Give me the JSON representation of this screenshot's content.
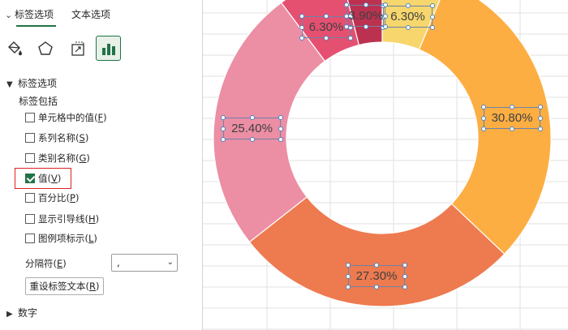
{
  "pane": {
    "tabs": [
      {
        "label": "标签选项",
        "chevron": "⌄"
      },
      {
        "label": "文本选项"
      }
    ],
    "icons": [
      "fill-line-icon",
      "effects-icon",
      "size-properties-icon",
      "chart-options-icon"
    ],
    "section_label_options": "标签选项",
    "label_contains": "标签包括",
    "options": [
      {
        "label": "单元格中的值",
        "hotkey": "F",
        "checked": false
      },
      {
        "label": "系列名称",
        "hotkey": "S",
        "checked": false
      },
      {
        "label": "类别名称",
        "hotkey": "G",
        "checked": false
      },
      {
        "label": "值",
        "hotkey": "V",
        "checked": true
      },
      {
        "label": "百分比",
        "hotkey": "P",
        "checked": false
      },
      {
        "label": "显示引导线",
        "hotkey": "H",
        "checked": false
      },
      {
        "label": "图例项标示",
        "hotkey": "L",
        "checked": false
      }
    ],
    "separator": {
      "label": "分隔符",
      "hotkey": "E",
      "value": ","
    },
    "reset": {
      "label": "重设标签文本",
      "hotkey": "R"
    },
    "section_number": "数字",
    "accent_color": "#217346",
    "highlight_color": "#e02020"
  },
  "chart_data": {
    "type": "donut",
    "values": [
      6.3,
      30.8,
      27.3,
      25.4,
      6.3,
      3.9
    ],
    "labels": [
      "6.30%",
      "30.80%",
      "27.30%",
      "25.40%",
      "6.30%",
      "3.90%"
    ],
    "colors": [
      "#f6d66d",
      "#fdae43",
      "#ee7a4f",
      "#ec8ea4",
      "#e55071",
      "#bd3150"
    ],
    "start_angle_deg": 0,
    "direction": "clockwise"
  }
}
